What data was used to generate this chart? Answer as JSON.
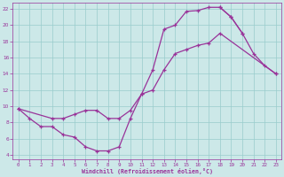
{
  "bg_color": "#cce8e8",
  "grid_color": "#99cccc",
  "line_color": "#993399",
  "xlim": [
    -0.5,
    23.5
  ],
  "ylim": [
    3.5,
    22.8
  ],
  "xticks": [
    0,
    1,
    2,
    3,
    4,
    5,
    6,
    7,
    8,
    9,
    10,
    11,
    12,
    13,
    14,
    15,
    16,
    17,
    18,
    19,
    20,
    21,
    22,
    23
  ],
  "yticks": [
    4,
    6,
    8,
    10,
    12,
    14,
    16,
    18,
    20,
    22
  ],
  "xlabel": "Windchill (Refroidissement éolien,°C)",
  "series1_x": [
    0,
    1,
    2,
    3,
    4,
    5,
    6,
    7,
    8,
    9,
    10,
    11,
    12,
    13,
    14,
    15,
    16,
    17,
    18,
    19,
    20
  ],
  "series1_y": [
    9.7,
    8.5,
    7.5,
    7.5,
    6.5,
    6.2,
    5.0,
    4.5,
    4.5,
    5.0,
    8.5,
    11.5,
    14.5,
    19.5,
    20.0,
    21.7,
    21.8,
    22.2,
    22.2,
    21.0,
    19.0
  ],
  "series2_x": [
    0,
    3,
    4,
    5,
    6,
    7,
    8,
    9,
    10,
    11,
    12,
    13,
    14,
    15,
    16,
    17,
    18,
    23
  ],
  "series2_y": [
    9.7,
    8.5,
    8.5,
    9.0,
    9.5,
    9.5,
    8.5,
    8.5,
    9.5,
    11.5,
    12.0,
    14.5,
    16.5,
    17.0,
    17.5,
    17.8,
    19.0,
    14.0
  ],
  "series3_x": [
    18,
    19,
    20,
    21,
    22,
    23
  ],
  "series3_y": [
    22.2,
    21.0,
    19.0,
    16.5,
    15.0,
    14.0
  ]
}
